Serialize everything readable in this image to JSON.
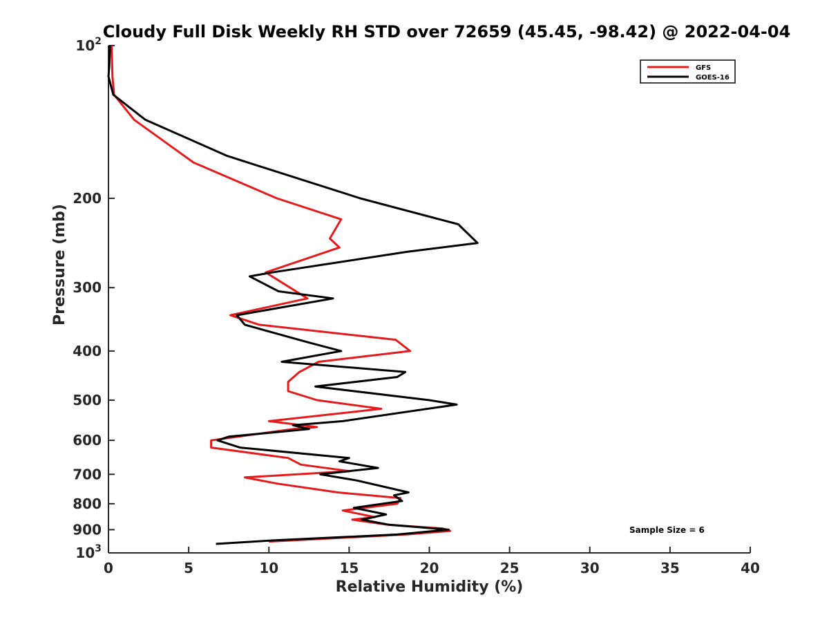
{
  "chart_data": {
    "type": "line",
    "title": "Cloudy Full Disk Weekly RH STD over 72659 (45.45, -98.42) @ 2022-04-04",
    "xlabel": "Relative Humidity (%)",
    "ylabel": "Pressure (mb)",
    "xlim": [
      0,
      40
    ],
    "ylim": [
      100,
      1000
    ],
    "y_scale": "log",
    "y_reversed": true,
    "grid": false,
    "legend_position": "top-right",
    "x_ticks": [
      "0",
      "5",
      "10",
      "15",
      "20",
      "25",
      "30",
      "35",
      "40"
    ],
    "y_ticks": [
      {
        "value": 100,
        "label": "10",
        "sup": "2"
      },
      {
        "value": 200,
        "label": "200",
        "sup": ""
      },
      {
        "value": 300,
        "label": "300",
        "sup": ""
      },
      {
        "value": 400,
        "label": "400",
        "sup": ""
      },
      {
        "value": 500,
        "label": "500",
        "sup": ""
      },
      {
        "value": 600,
        "label": "600",
        "sup": ""
      },
      {
        "value": 700,
        "label": "700",
        "sup": ""
      },
      {
        "value": 800,
        "label": "800",
        "sup": ""
      },
      {
        "value": 900,
        "label": "900",
        "sup": ""
      },
      {
        "value": 1000,
        "label": "10",
        "sup": "3"
      }
    ],
    "annotation": "Sample Size = 6",
    "series": [
      {
        "name": "GFS",
        "color": "#e41a1c",
        "points": [
          [
            0.2,
            100
          ],
          [
            0.25,
            115
          ],
          [
            0.35,
            125
          ],
          [
            1.6,
            140
          ],
          [
            5.3,
            170
          ],
          [
            10.5,
            200
          ],
          [
            14.5,
            220
          ],
          [
            13.8,
            240
          ],
          [
            14.4,
            250
          ],
          [
            9.8,
            280
          ],
          [
            12.4,
            315
          ],
          [
            7.6,
            340
          ],
          [
            9.4,
            355
          ],
          [
            17.9,
            380
          ],
          [
            18.8,
            400
          ],
          [
            13.1,
            420
          ],
          [
            11.9,
            440
          ],
          [
            11.2,
            460
          ],
          [
            11.2,
            480
          ],
          [
            13.0,
            500
          ],
          [
            17.0,
            520
          ],
          [
            10.0,
            550
          ],
          [
            13.0,
            565
          ],
          [
            11.5,
            570
          ],
          [
            6.4,
            600
          ],
          [
            6.4,
            620
          ],
          [
            11.2,
            650
          ],
          [
            12.0,
            670
          ],
          [
            15.0,
            690
          ],
          [
            8.5,
            710
          ],
          [
            10.5,
            730
          ],
          [
            14.3,
            760
          ],
          [
            18.2,
            780
          ],
          [
            18.0,
            800
          ],
          [
            14.6,
            825
          ],
          [
            16.6,
            850
          ],
          [
            15.2,
            860
          ],
          [
            17.4,
            880
          ],
          [
            20.8,
            895
          ],
          [
            21.3,
            905
          ],
          [
            18.5,
            920
          ],
          [
            10.0,
            950
          ]
        ]
      },
      {
        "name": "GOES-16",
        "color": "#000000",
        "points": [
          [
            0.1,
            100
          ],
          [
            0.05,
            110
          ],
          [
            0.0,
            115
          ],
          [
            0.3,
            125
          ],
          [
            2.3,
            140
          ],
          [
            7.4,
            165
          ],
          [
            15.7,
            200
          ],
          [
            21.8,
            225
          ],
          [
            23.0,
            245
          ],
          [
            18.6,
            255
          ],
          [
            10.2,
            280
          ],
          [
            8.8,
            285
          ],
          [
            10.6,
            305
          ],
          [
            14.0,
            315
          ],
          [
            8.0,
            340
          ],
          [
            8.5,
            355
          ],
          [
            12.5,
            385
          ],
          [
            14.5,
            400
          ],
          [
            10.8,
            420
          ],
          [
            18.5,
            440
          ],
          [
            18.0,
            450
          ],
          [
            12.9,
            470
          ],
          [
            20.0,
            500
          ],
          [
            21.7,
            510
          ],
          [
            14.6,
            550
          ],
          [
            11.5,
            560
          ],
          [
            12.5,
            570
          ],
          [
            7.5,
            590
          ],
          [
            6.8,
            600
          ],
          [
            8.2,
            620
          ],
          [
            15.0,
            650
          ],
          [
            14.4,
            660
          ],
          [
            16.8,
            680
          ],
          [
            13.2,
            700
          ],
          [
            15.5,
            720
          ],
          [
            18.7,
            760
          ],
          [
            17.8,
            770
          ],
          [
            18.3,
            790
          ],
          [
            15.3,
            815
          ],
          [
            17.3,
            840
          ],
          [
            15.8,
            860
          ],
          [
            17.5,
            880
          ],
          [
            21.2,
            900
          ],
          [
            18.0,
            920
          ],
          [
            10.2,
            945
          ],
          [
            6.7,
            960
          ]
        ]
      }
    ]
  }
}
